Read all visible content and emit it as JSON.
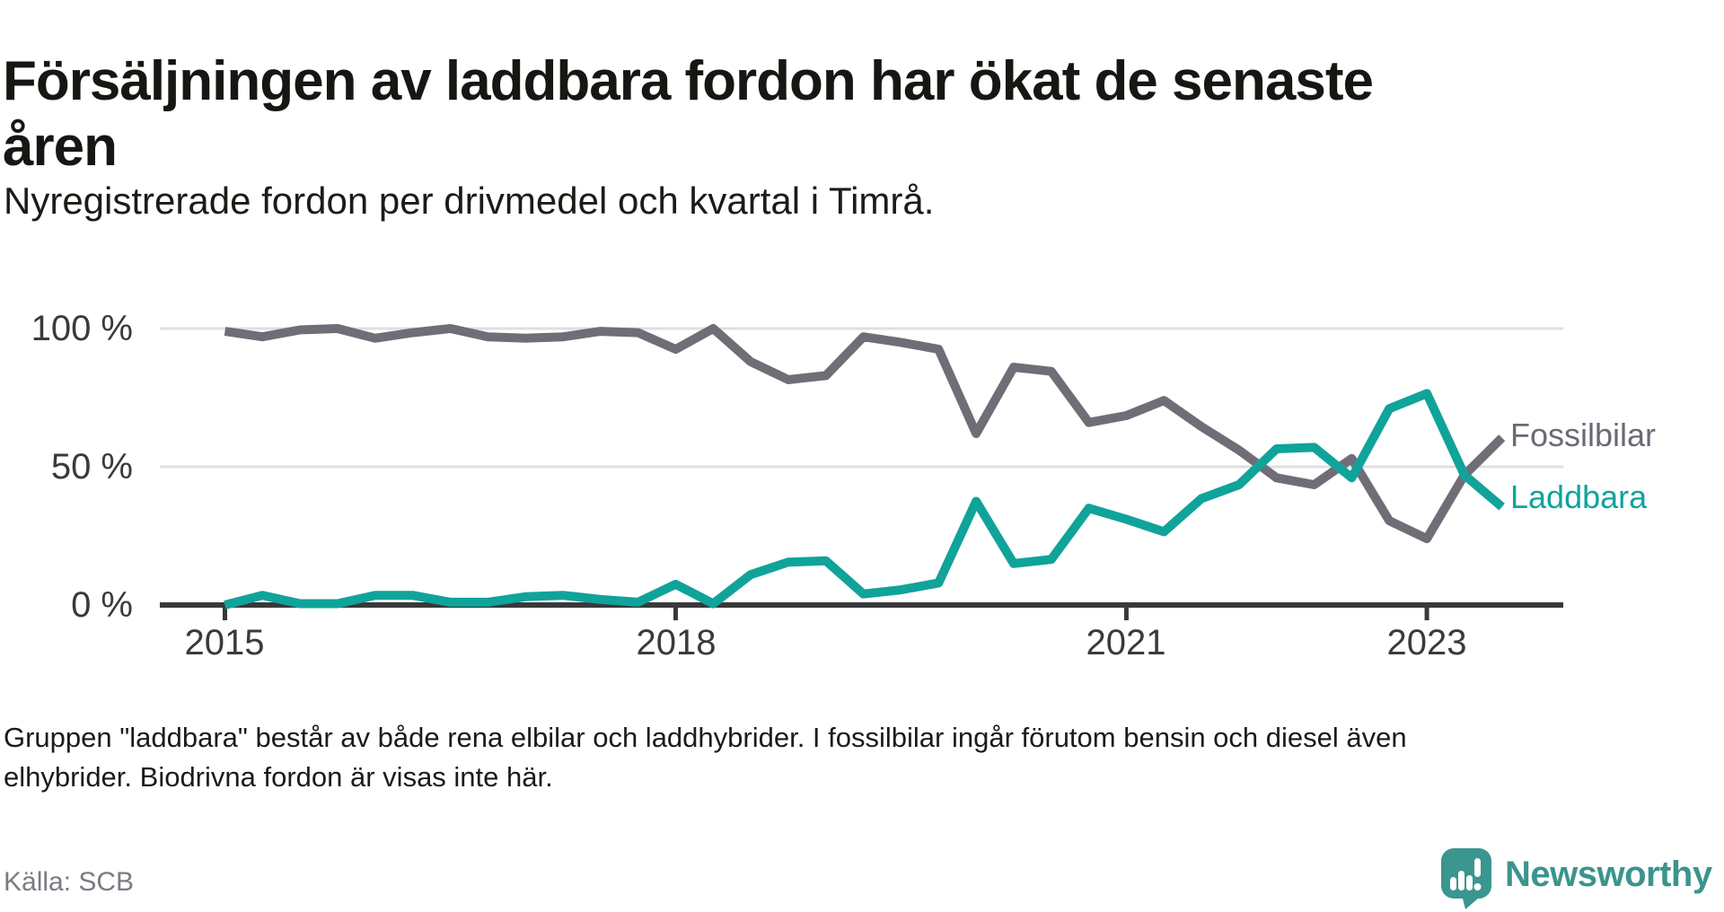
{
  "title": {
    "line1": "Försäljningen av laddbara fordon har ökat de senaste",
    "line2": "åren"
  },
  "subtitle": "Nyregistrerade fordon per drivmedel och kvartal i Timrå.",
  "chart_data": {
    "type": "line",
    "unit": "%",
    "frequency": "quarterly",
    "grid": "horizontal",
    "legend_position": "right-of-line-ends",
    "x": [
      "2015 Q1",
      "2015 Q2",
      "2015 Q3",
      "2015 Q4",
      "2016 Q1",
      "2016 Q2",
      "2016 Q3",
      "2016 Q4",
      "2017 Q1",
      "2017 Q2",
      "2017 Q3",
      "2017 Q4",
      "2018 Q1",
      "2018 Q2",
      "2018 Q3",
      "2018 Q4",
      "2019 Q1",
      "2019 Q2",
      "2019 Q3",
      "2019 Q4",
      "2020 Q1",
      "2020 Q2",
      "2020 Q3",
      "2020 Q4",
      "2021 Q1",
      "2021 Q2",
      "2021 Q3",
      "2021 Q4",
      "2022 Q1",
      "2022 Q2",
      "2022 Q3",
      "2022 Q4",
      "2023 Q1",
      "2023 Q2",
      "2023 Q3"
    ],
    "series": [
      {
        "name": "Fossilbilar",
        "color": "#716d77",
        "label_color": "#6c6975",
        "values": [
          99,
          97,
          99.5,
          100,
          96.5,
          98.5,
          100,
          97,
          96.5,
          97,
          99,
          98.5,
          92.5,
          100,
          88,
          81.5,
          83,
          97,
          95,
          92.5,
          62,
          86,
          84.5,
          66,
          68.5,
          74,
          64.5,
          56,
          46,
          43.5,
          53,
          30.5,
          24,
          47,
          60.5
        ]
      },
      {
        "name": "Laddbara",
        "color": "#10a39a",
        "label_color": "#10a39a",
        "values": [
          0,
          3.5,
          0.5,
          0.5,
          3.5,
          3.5,
          1,
          1,
          3,
          3.5,
          2,
          1,
          7.5,
          0.5,
          11,
          15.5,
          16,
          4,
          5.5,
          8,
          37.5,
          15,
          16.5,
          35,
          31,
          26.5,
          38.5,
          43.5,
          56.5,
          57,
          46,
          71,
          76.5,
          47,
          35.5
        ]
      }
    ],
    "y_axis": {
      "range": [
        0,
        100
      ],
      "ticks": [
        {
          "label": "100 %",
          "value": 100
        },
        {
          "label": "50 %",
          "value": 50
        },
        {
          "label": "0 %",
          "value": 0
        }
      ]
    },
    "x_axis": {
      "ticks": [
        {
          "label": "2015",
          "quarter_index": 0
        },
        {
          "label": "2018",
          "quarter_index": 12
        },
        {
          "label": "2021",
          "quarter_index": 24
        },
        {
          "label": "2023",
          "quarter_index": 32
        }
      ]
    }
  },
  "footnote": {
    "line1": "Gruppen \"laddbara\" består av både rena elbilar och laddhybrider. I fossilbilar ingår förutom bensin och diesel även",
    "line2": "elhybrider. Biodrivna fordon är visas inte här."
  },
  "source": "Källa: SCB",
  "branding": {
    "wordmark": "Newsworthy",
    "logo_color": "#3a968f",
    "logo_icon": "speech-bubble-bar-chart"
  },
  "colors": {
    "gridline": "#dfdfe1",
    "axis": "#39383b",
    "tick_label": "#3a393e"
  }
}
